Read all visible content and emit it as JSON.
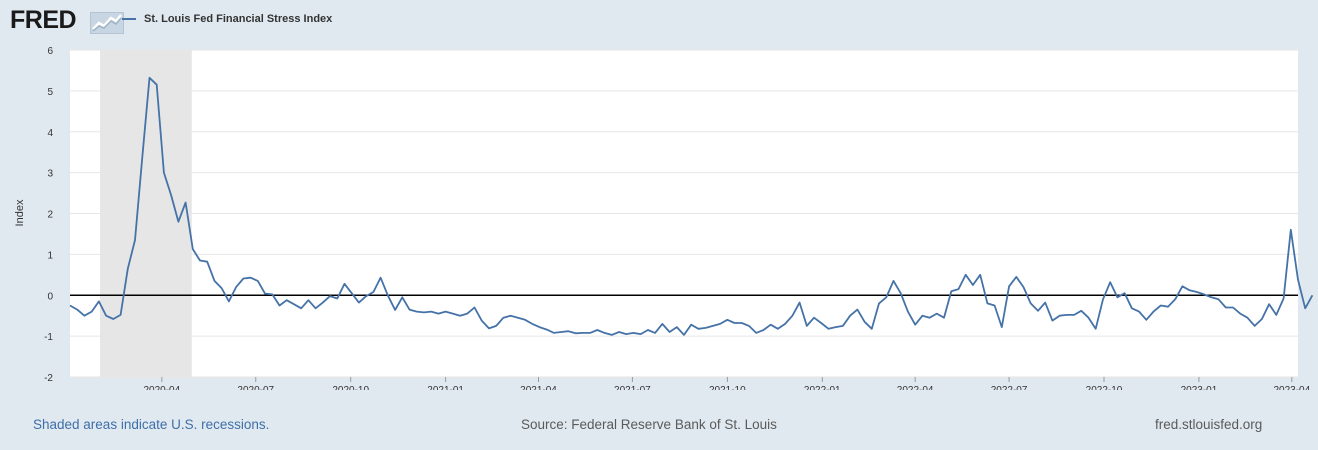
{
  "header": {
    "brand": "FRED",
    "legend_label": "St. Louis Fed Financial Stress Index"
  },
  "footer": {
    "recession_note": "Shaded areas indicate U.S. recessions.",
    "source": "Source: Federal Reserve Bank of St. Louis",
    "site": "fred.stlouisfed.org"
  },
  "colors": {
    "series": "#4572a7",
    "recession": "#e6e6e6",
    "zero_line": "#000000",
    "background": "#e1e9f0"
  },
  "chart_data": {
    "type": "line",
    "title": "St. Louis Fed Financial Stress Index",
    "xlabel": "",
    "ylabel": "Index",
    "ylim": [
      -2,
      6
    ],
    "yticks": [
      "-2",
      "-1",
      "0",
      "1",
      "2",
      "3",
      "4",
      "5",
      "6"
    ],
    "x_range": [
      "2020-01-03",
      "2023-04-07"
    ],
    "xticks": [
      {
        "date": "2020-04-01",
        "label": "2020-04"
      },
      {
        "date": "2020-07-01",
        "label": "2020-07"
      },
      {
        "date": "2020-10-01",
        "label": "2020-10"
      },
      {
        "date": "2021-01-01",
        "label": "2021-01"
      },
      {
        "date": "2021-04-01",
        "label": "2021-04"
      },
      {
        "date": "2021-07-01",
        "label": "2021-07"
      },
      {
        "date": "2021-10-01",
        "label": "2021-10"
      },
      {
        "date": "2022-01-01",
        "label": "2022-01"
      },
      {
        "date": "2022-04-01",
        "label": "2022-04"
      },
      {
        "date": "2022-07-01",
        "label": "2022-07"
      },
      {
        "date": "2022-10-01",
        "label": "2022-10"
      },
      {
        "date": "2023-01-01",
        "label": "2023-01"
      },
      {
        "date": "2023-04-01",
        "label": "2023-04"
      }
    ],
    "recession": {
      "start": "2020-02-01",
      "end": "2020-04-30"
    },
    "zero_line": 0,
    "grid": "horizontal",
    "series": [
      {
        "name": "St. Louis Fed Financial Stress Index",
        "frequency": "weekly",
        "start": "2020-01-03",
        "values": [
          -0.25,
          -0.35,
          -0.5,
          -0.4,
          -0.15,
          -0.5,
          -0.58,
          -0.48,
          0.65,
          1.35,
          3.35,
          5.32,
          5.15,
          3.0,
          2.45,
          1.8,
          2.27,
          1.13,
          0.85,
          0.82,
          0.35,
          0.17,
          -0.15,
          0.2,
          0.41,
          0.43,
          0.35,
          0.04,
          0.02,
          -0.25,
          -0.12,
          -0.22,
          -0.32,
          -0.12,
          -0.32,
          -0.18,
          -0.02,
          -0.08,
          0.28,
          0.05,
          -0.18,
          -0.02,
          0.08,
          0.43,
          0.0,
          -0.36,
          -0.05,
          -0.35,
          -0.4,
          -0.42,
          -0.4,
          -0.45,
          -0.4,
          -0.45,
          -0.5,
          -0.45,
          -0.3,
          -0.62,
          -0.81,
          -0.75,
          -0.55,
          -0.5,
          -0.55,
          -0.6,
          -0.7,
          -0.78,
          -0.84,
          -0.92,
          -0.9,
          -0.88,
          -0.93,
          -0.92,
          -0.92,
          -0.85,
          -0.92,
          -0.97,
          -0.9,
          -0.95,
          -0.92,
          -0.95,
          -0.85,
          -0.92,
          -0.7,
          -0.9,
          -0.78,
          -0.97,
          -0.72,
          -0.82,
          -0.8,
          -0.75,
          -0.7,
          -0.6,
          -0.68,
          -0.68,
          -0.75,
          -0.92,
          -0.85,
          -0.72,
          -0.82,
          -0.7,
          -0.5,
          -0.18,
          -0.75,
          -0.55,
          -0.68,
          -0.82,
          -0.78,
          -0.75,
          -0.5,
          -0.35,
          -0.65,
          -0.82,
          -0.2,
          -0.05,
          0.35,
          0.05,
          -0.4,
          -0.72,
          -0.5,
          -0.55,
          -0.45,
          -0.55,
          0.1,
          0.15,
          0.5,
          0.25,
          0.5,
          -0.2,
          -0.25,
          -0.78,
          0.22,
          0.45,
          0.2,
          -0.2,
          -0.38,
          -0.18,
          -0.62,
          -0.5,
          -0.48,
          -0.48,
          -0.38,
          -0.55,
          -0.82,
          -0.1,
          0.32,
          -0.05,
          0.05,
          -0.32,
          -0.4,
          -0.6,
          -0.4,
          -0.25,
          -0.28,
          -0.1,
          0.22,
          0.12,
          0.08,
          0.02,
          -0.05,
          -0.1,
          -0.3,
          -0.3,
          -0.45,
          -0.55,
          -0.75,
          -0.58,
          -0.22,
          -0.48,
          -0.08,
          1.6,
          0.38,
          -0.32,
          0.0
        ]
      }
    ]
  }
}
